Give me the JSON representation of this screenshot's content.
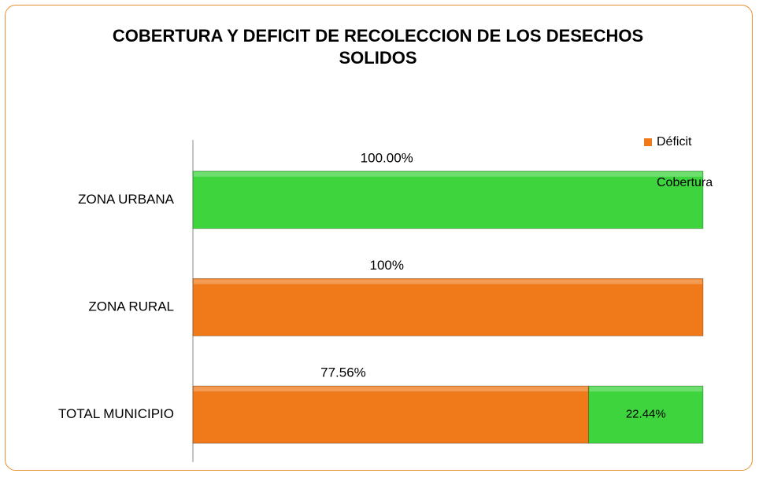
{
  "chart_data": {
    "type": "stacked-barh",
    "title": "COBERTURA Y DEFICIT DE RECOLECCION DE LOS DESECHOS SOLIDOS",
    "categories": [
      "ZONA URBANA",
      "ZONA RURAL",
      "TOTAL MUNICIPIO"
    ],
    "series": [
      {
        "name": "Déficit",
        "color": "#f07a1a",
        "values": [
          null,
          100,
          77.56
        ],
        "value_labels": [
          null,
          "100%",
          "77.56%"
        ]
      },
      {
        "name": "Cobertura",
        "color": "#3ed43e",
        "values": [
          100,
          null,
          22.44
        ],
        "value_labels": [
          "100.00%",
          null,
          "22.44%"
        ]
      }
    ],
    "legend": "top-right"
  }
}
